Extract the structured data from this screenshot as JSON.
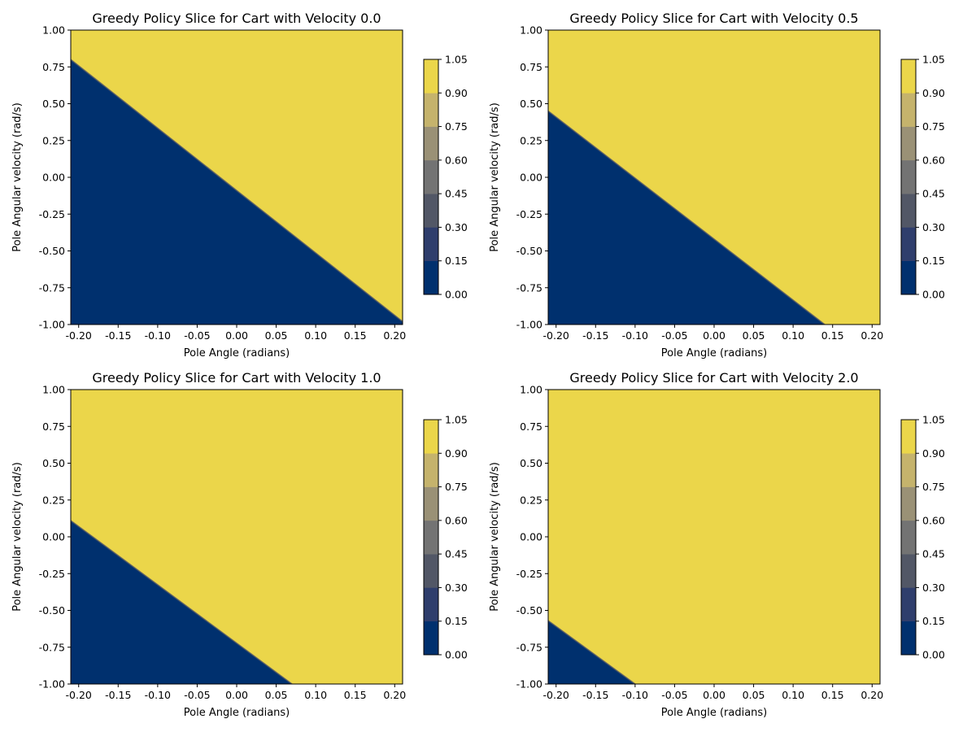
{
  "chart_data": [
    {
      "type": "heatmap",
      "title": "Greedy Policy Slice for Cart with Velocity 0.0",
      "xlabel": "Pole Angle (radians)",
      "ylabel": "Pole Angular velocity (rad/s)",
      "xlim": [
        -0.21,
        0.21
      ],
      "ylim": [
        -1.0,
        1.0
      ],
      "xticks": [
        "-0.20",
        "-0.15",
        "-0.10",
        "-0.05",
        "0.00",
        "0.05",
        "0.10",
        "0.15",
        "0.20"
      ],
      "yticks": [
        "-1.00",
        "-0.75",
        "-0.50",
        "-0.25",
        "0.00",
        "0.25",
        "0.50",
        "0.75",
        "1.00"
      ],
      "boundary": [
        [
          -0.21,
          0.8
        ],
        [
          0.21,
          -0.98
        ]
      ],
      "region_below_value": 0,
      "region_above_value": 1
    },
    {
      "type": "heatmap",
      "title": "Greedy Policy Slice for Cart with Velocity 0.5",
      "xlabel": "Pole Angle (radians)",
      "ylabel": "Pole Angular velocity (rad/s)",
      "xlim": [
        -0.21,
        0.21
      ],
      "ylim": [
        -1.0,
        1.0
      ],
      "xticks": [
        "-0.20",
        "-0.15",
        "-0.10",
        "-0.05",
        "0.00",
        "0.05",
        "0.10",
        "0.15",
        "0.20"
      ],
      "yticks": [
        "-1.00",
        "-0.75",
        "-0.50",
        "-0.25",
        "0.00",
        "0.25",
        "0.50",
        "0.75",
        "1.00"
      ],
      "boundary": [
        [
          -0.21,
          0.45
        ],
        [
          0.14,
          -1.0
        ]
      ],
      "region_below_value": 0,
      "region_above_value": 1
    },
    {
      "type": "heatmap",
      "title": "Greedy Policy Slice for Cart with Velocity 1.0",
      "xlabel": "Pole Angle (radians)",
      "ylabel": "Pole Angular velocity (rad/s)",
      "xlim": [
        -0.21,
        0.21
      ],
      "ylim": [
        -1.0,
        1.0
      ],
      "xticks": [
        "-0.20",
        "-0.15",
        "-0.10",
        "-0.05",
        "0.00",
        "0.05",
        "0.10",
        "0.15",
        "0.20"
      ],
      "yticks": [
        "-1.00",
        "-0.75",
        "-0.50",
        "-0.25",
        "0.00",
        "0.25",
        "0.50",
        "0.75",
        "1.00"
      ],
      "boundary": [
        [
          -0.21,
          0.11
        ],
        [
          0.07,
          -1.0
        ]
      ],
      "region_below_value": 0,
      "region_above_value": 1
    },
    {
      "type": "heatmap",
      "title": "Greedy Policy Slice for Cart with Velocity 2.0",
      "xlabel": "Pole Angle (radians)",
      "ylabel": "Pole Angular velocity (rad/s)",
      "xlim": [
        -0.21,
        0.21
      ],
      "ylim": [
        -1.0,
        1.0
      ],
      "xticks": [
        "-0.20",
        "-0.15",
        "-0.10",
        "-0.05",
        "0.00",
        "0.05",
        "0.10",
        "0.15",
        "0.20"
      ],
      "yticks": [
        "-1.00",
        "-0.75",
        "-0.50",
        "-0.25",
        "0.00",
        "0.25",
        "0.50",
        "0.75",
        "1.00"
      ],
      "boundary": [
        [
          -0.21,
          -0.57
        ],
        [
          -0.1,
          -1.0
        ]
      ],
      "region_below_value": 0,
      "region_above_value": 1
    }
  ],
  "colorbar": {
    "ticks": [
      "0.00",
      "0.15",
      "0.30",
      "0.45",
      "0.60",
      "0.75",
      "0.90",
      "1.05"
    ],
    "range": [
      0.0,
      1.05
    ],
    "colors": [
      "#00306e",
      "#2f3e6c",
      "#525766",
      "#737373",
      "#9a9176",
      "#c5b36c",
      "#ebd64a"
    ]
  }
}
